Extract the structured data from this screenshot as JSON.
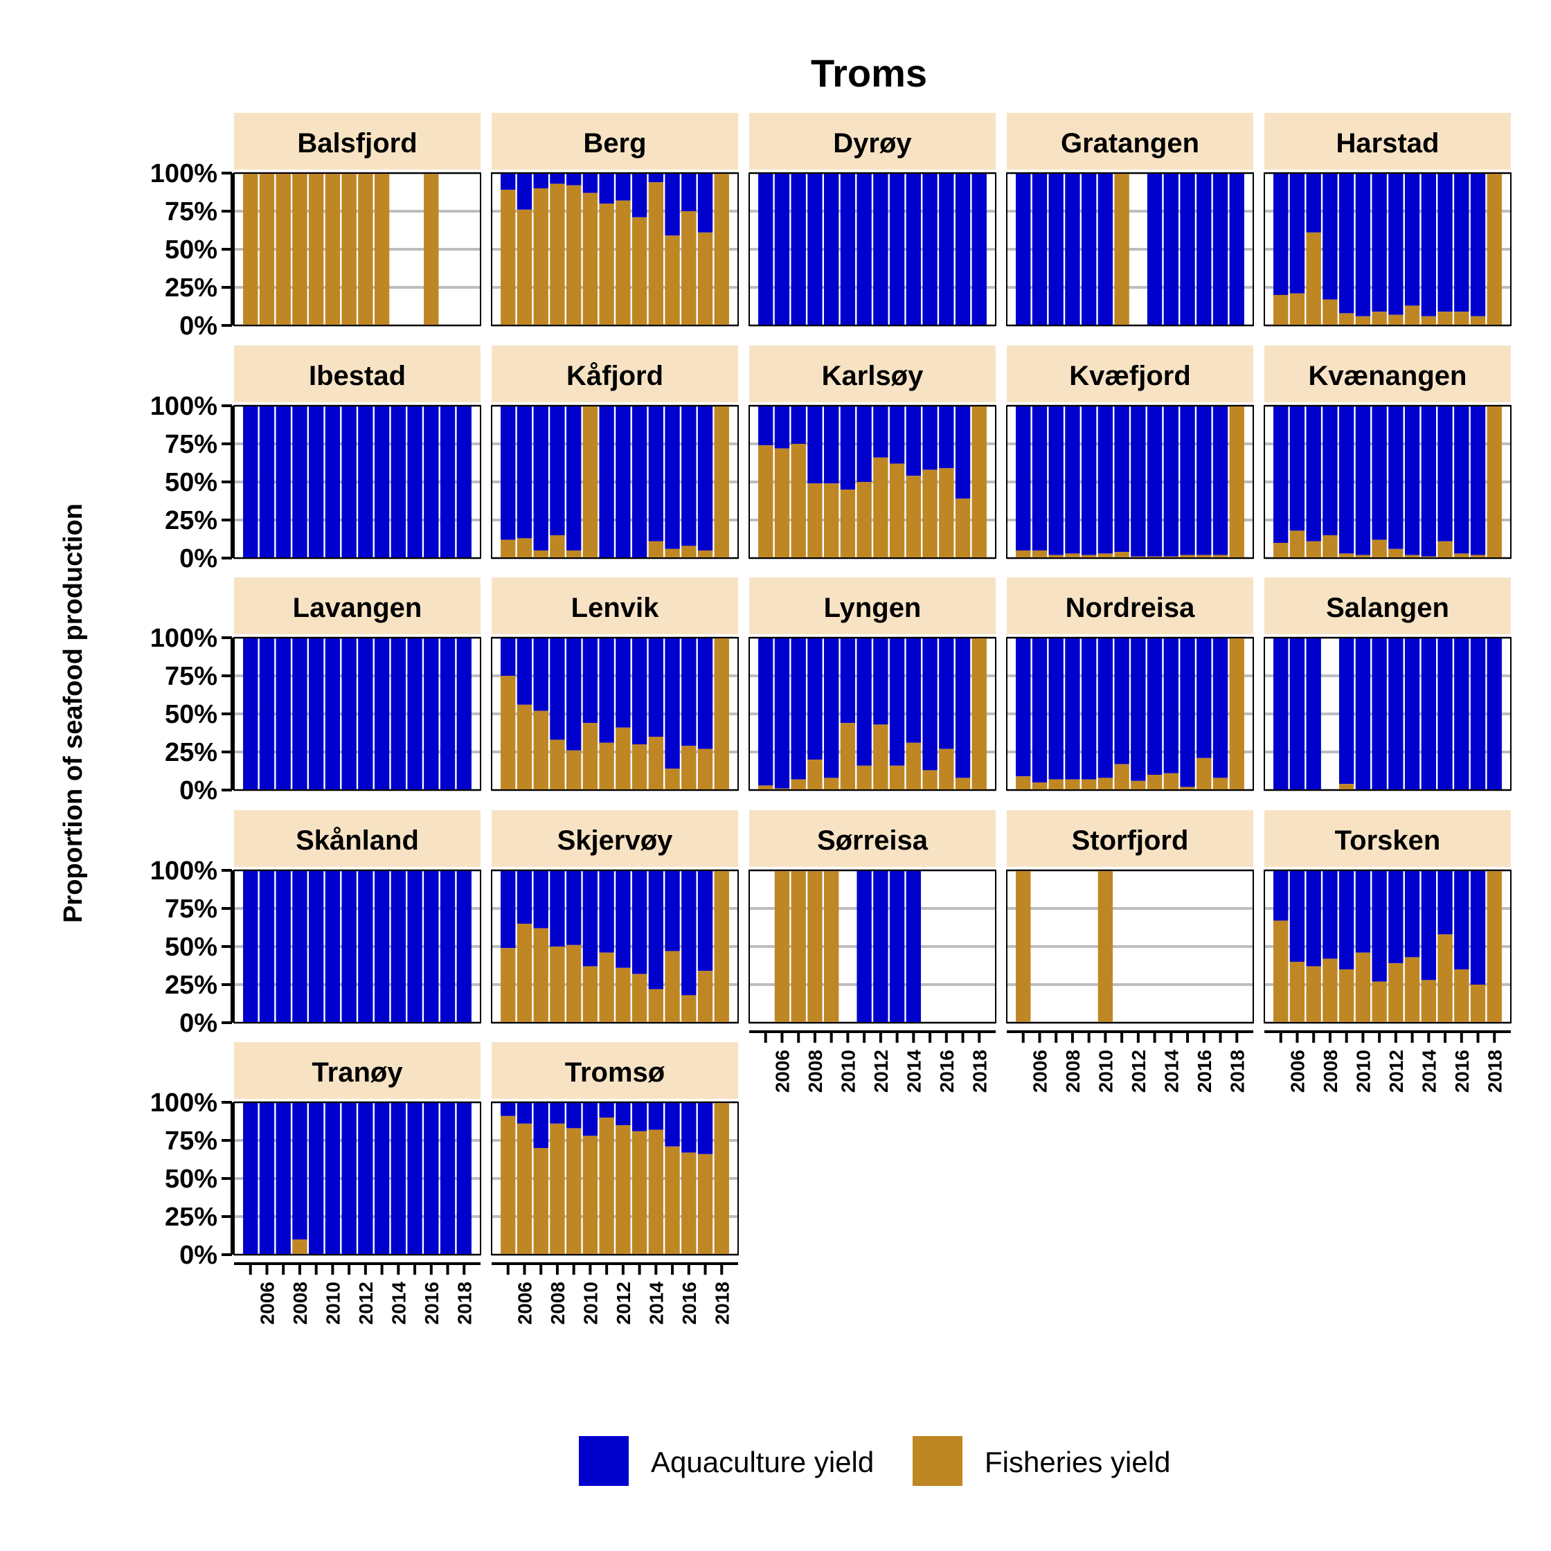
{
  "chart_data": {
    "type": "bar",
    "stacked": true,
    "title": "Troms",
    "ylabel": "Proportion of seafood production",
    "xlabel": "",
    "ylim": [
      0,
      1
    ],
    "y_ticks": [
      "0%",
      "25%",
      "50%",
      "75%",
      "100%"
    ],
    "years": [
      2005,
      2006,
      2007,
      2008,
      2009,
      2010,
      2011,
      2012,
      2013,
      2014,
      2015,
      2016,
      2017,
      2018
    ],
    "x_tick_labels": [
      "2006",
      "2008",
      "2010",
      "2012",
      "2014",
      "2016",
      "2018"
    ],
    "grid": true,
    "legend_position": "bottom",
    "series": [
      {
        "name": "Aquaculture yield",
        "color": "#0000CD"
      },
      {
        "name": "Fisheries yield",
        "color": "#BF8624"
      }
    ],
    "note": "values are Fisheries yield share per year (Aquaculture = 1 - value); null = no production",
    "panels": [
      {
        "name": "Balsfjord",
        "fisheries": [
          1,
          1,
          1,
          1,
          1,
          1,
          1,
          1,
          1,
          null,
          null,
          1,
          null,
          null
        ]
      },
      {
        "name": "Berg",
        "fisheries": [
          0.89,
          0.76,
          0.9,
          0.93,
          0.92,
          0.87,
          0.8,
          0.82,
          0.71,
          0.94,
          0.59,
          0.75,
          0.61,
          1
        ]
      },
      {
        "name": "Dyrøy",
        "fisheries": [
          0,
          0,
          0,
          0,
          0,
          0,
          0,
          0,
          0,
          0,
          0,
          0,
          0,
          0
        ]
      },
      {
        "name": "Gratangen",
        "fisheries": [
          0,
          0,
          0,
          0,
          0,
          0,
          1,
          null,
          0,
          0,
          0,
          0,
          0,
          0
        ]
      },
      {
        "name": "Harstad",
        "fisheries": [
          0.2,
          0.21,
          0.61,
          0.17,
          0.08,
          0.06,
          0.09,
          0.07,
          0.13,
          0.06,
          0.09,
          0.09,
          0.06,
          1
        ]
      },
      {
        "name": "Ibestad",
        "fisheries": [
          0,
          0,
          0,
          0,
          0,
          0,
          0,
          0,
          0,
          0,
          0,
          0,
          0,
          0
        ]
      },
      {
        "name": "Kåfjord",
        "fisheries": [
          0.12,
          0.13,
          0.05,
          0.15,
          0.05,
          1,
          0,
          0,
          0,
          0.11,
          0.06,
          0.08,
          0.05,
          1
        ]
      },
      {
        "name": "Karlsøy",
        "fisheries": [
          0.74,
          0.72,
          0.75,
          0.49,
          0.49,
          0.45,
          0.5,
          0.66,
          0.62,
          0.54,
          0.58,
          0.59,
          0.39,
          1
        ]
      },
      {
        "name": "Kvæfjord",
        "fisheries": [
          0.05,
          0.05,
          0.02,
          0.03,
          0.02,
          0.03,
          0.04,
          0.01,
          0.01,
          0.01,
          0.02,
          0.02,
          0.02,
          1
        ]
      },
      {
        "name": "Kvænangen",
        "fisheries": [
          0.1,
          0.18,
          0.11,
          0.15,
          0.03,
          0.02,
          0.12,
          0.06,
          0.02,
          0.01,
          0.11,
          0.03,
          0.02,
          1
        ]
      },
      {
        "name": "Lavangen",
        "fisheries": [
          0,
          0,
          0,
          0,
          0,
          0,
          0,
          0,
          0,
          0,
          0,
          0,
          0,
          0
        ]
      },
      {
        "name": "Lenvik",
        "fisheries": [
          0.75,
          0.56,
          0.52,
          0.33,
          0.26,
          0.44,
          0.31,
          0.41,
          0.3,
          0.35,
          0.14,
          0.29,
          0.27,
          1
        ]
      },
      {
        "name": "Lyngen",
        "fisheries": [
          0.03,
          0.01,
          0.07,
          0.2,
          0.08,
          0.44,
          0.16,
          0.43,
          0.16,
          0.31,
          0.13,
          0.27,
          0.08,
          1
        ]
      },
      {
        "name": "Nordreisa",
        "fisheries": [
          0.09,
          0.05,
          0.07,
          0.07,
          0.07,
          0.08,
          0.17,
          0.06,
          0.1,
          0.11,
          0.02,
          0.21,
          0.08,
          1
        ]
      },
      {
        "name": "Salangen",
        "fisheries": [
          0,
          0,
          0,
          null,
          0.04,
          0,
          0,
          0,
          0,
          0,
          0,
          0,
          0,
          0
        ]
      },
      {
        "name": "Skånland",
        "fisheries": [
          0,
          0,
          0,
          0,
          0,
          0,
          0,
          0,
          0,
          0,
          0,
          0,
          0,
          0
        ]
      },
      {
        "name": "Skjervøy",
        "fisheries": [
          0.49,
          0.65,
          0.62,
          0.5,
          0.51,
          0.37,
          0.46,
          0.36,
          0.32,
          0.22,
          0.47,
          0.18,
          0.34,
          1
        ]
      },
      {
        "name": "Sørreisa",
        "fisheries": [
          null,
          1,
          1,
          1,
          1,
          null,
          0,
          0,
          0,
          0,
          null,
          null,
          null,
          null
        ]
      },
      {
        "name": "Storfjord",
        "fisheries": [
          1,
          null,
          null,
          null,
          null,
          1,
          null,
          null,
          null,
          null,
          null,
          null,
          null,
          null
        ]
      },
      {
        "name": "Torsken",
        "fisheries": [
          0.67,
          0.4,
          0.37,
          0.42,
          0.35,
          0.46,
          0.27,
          0.39,
          0.43,
          0.28,
          0.58,
          0.35,
          0.25,
          1
        ]
      },
      {
        "name": "Tranøy",
        "fisheries": [
          0,
          0,
          0,
          0.1,
          0,
          0,
          0,
          0,
          0,
          0,
          0,
          0,
          0,
          0
        ]
      },
      {
        "name": "Tromsø",
        "fisheries": [
          0.91,
          0.86,
          0.7,
          0.86,
          0.83,
          0.78,
          0.9,
          0.85,
          0.81,
          0.82,
          0.71,
          0.67,
          0.66,
          1
        ]
      }
    ]
  }
}
